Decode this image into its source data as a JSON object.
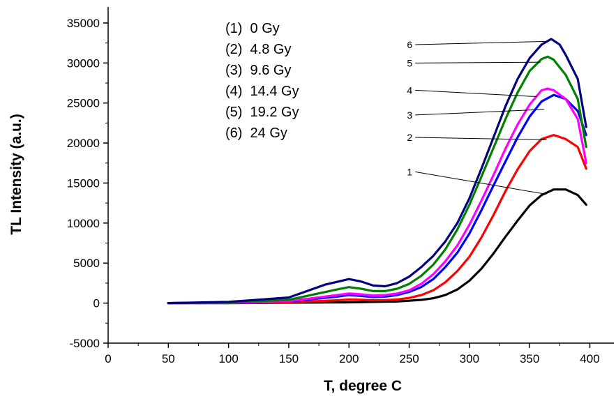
{
  "chart_data": {
    "type": "line",
    "xlabel": "T, degree C",
    "ylabel": "TL Intensity (a.u.)",
    "xlim": [
      0,
      420
    ],
    "ylim": [
      -5000,
      37000
    ],
    "xticks": [
      0,
      50,
      100,
      150,
      200,
      250,
      300,
      350,
      400
    ],
    "yticks": [
      -5000,
      0,
      5000,
      10000,
      15000,
      20000,
      25000,
      30000,
      35000
    ],
    "grid": false,
    "legend_position": "top-left",
    "legend": [
      "(1)  0 Gy",
      "(2)  4.8 Gy",
      "(3)  9.6 Gy",
      "(4)  14.4 Gy",
      "(5)  19.2 Gy",
      "(6)  24 Gy"
    ],
    "series": [
      {
        "name": "1",
        "color": "#000000",
        "x": [
          50,
          100,
          150,
          200,
          220,
          240,
          260,
          270,
          280,
          290,
          300,
          310,
          320,
          330,
          340,
          350,
          360,
          370,
          380,
          390,
          397
        ],
        "y": [
          0,
          0,
          50,
          100,
          150,
          200,
          400,
          600,
          1000,
          1700,
          2800,
          4300,
          6200,
          8300,
          10300,
          12200,
          13500,
          14200,
          14200,
          13500,
          12300
        ]
      },
      {
        "name": "2",
        "color": "#ff0000",
        "x": [
          50,
          100,
          150,
          190,
          200,
          210,
          220,
          230,
          240,
          250,
          260,
          270,
          280,
          290,
          300,
          310,
          320,
          330,
          340,
          350,
          360,
          370,
          380,
          390,
          397
        ],
        "y": [
          0,
          20,
          100,
          350,
          450,
          420,
          350,
          380,
          450,
          650,
          1000,
          1600,
          2600,
          4000,
          5800,
          8200,
          11000,
          14000,
          16700,
          19000,
          20500,
          21000,
          20500,
          19500,
          16800
        ]
      },
      {
        "name": "3",
        "color": "#0000ff",
        "x": [
          50,
          100,
          150,
          190,
          200,
          210,
          220,
          230,
          240,
          250,
          260,
          270,
          280,
          290,
          300,
          310,
          320,
          330,
          340,
          350,
          360,
          370,
          380,
          390,
          397
        ],
        "y": [
          0,
          50,
          200,
          800,
          1000,
          900,
          750,
          800,
          1000,
          1400,
          2000,
          3000,
          4500,
          6300,
          8700,
          11600,
          14700,
          17700,
          20700,
          23300,
          25200,
          26000,
          25500,
          24000,
          21000
        ]
      },
      {
        "name": "4",
        "color": "#ff00ff",
        "x": [
          50,
          100,
          150,
          190,
          200,
          210,
          220,
          230,
          240,
          250,
          260,
          270,
          280,
          290,
          300,
          310,
          320,
          330,
          340,
          350,
          360,
          365,
          370,
          380,
          390,
          397
        ],
        "y": [
          0,
          50,
          250,
          1000,
          1200,
          1100,
          950,
          1000,
          1200,
          1600,
          2400,
          3600,
          5200,
          7200,
          9800,
          12800,
          16000,
          19300,
          22300,
          24800,
          26600,
          26800,
          26600,
          25500,
          23000,
          17500
        ]
      },
      {
        "name": "5",
        "color": "#008000",
        "x": [
          50,
          100,
          150,
          190,
          200,
          210,
          220,
          230,
          240,
          250,
          260,
          270,
          280,
          290,
          300,
          310,
          320,
          330,
          340,
          350,
          360,
          365,
          370,
          380,
          390,
          397
        ],
        "y": [
          0,
          100,
          400,
          1700,
          2000,
          1800,
          1500,
          1500,
          1800,
          2400,
          3400,
          4800,
          6700,
          9200,
          12300,
          15800,
          19400,
          23000,
          26300,
          29000,
          30500,
          30800,
          30400,
          28500,
          25500,
          19500
        ]
      },
      {
        "name": "6",
        "color": "#000080",
        "x": [
          50,
          100,
          150,
          180,
          200,
          210,
          220,
          230,
          240,
          250,
          260,
          270,
          280,
          290,
          300,
          310,
          320,
          330,
          340,
          350,
          360,
          368,
          375,
          380,
          390,
          397
        ],
        "y": [
          0,
          150,
          700,
          2300,
          3000,
          2700,
          2200,
          2100,
          2500,
          3300,
          4500,
          5900,
          7700,
          10000,
          13100,
          16800,
          20700,
          24600,
          28000,
          30600,
          32300,
          33000,
          32300,
          31000,
          28000,
          22000
        ]
      }
    ],
    "curve_labels": [
      {
        "text": "6",
        "label_x": 255,
        "label_y": 32300,
        "x": 364,
        "y": 32700
      },
      {
        "text": "5",
        "label_x": 255,
        "label_y": 30000,
        "x": 359,
        "y": 30100
      },
      {
        "text": "4",
        "label_x": 255,
        "label_y": 26600,
        "x": 356,
        "y": 25800
      },
      {
        "text": "3",
        "label_x": 255,
        "label_y": 23500,
        "x": 362,
        "y": 24200
      },
      {
        "text": "2",
        "label_x": 255,
        "label_y": 20700,
        "x": 364,
        "y": 20400
      },
      {
        "text": "1",
        "label_x": 255,
        "label_y": 16400,
        "x": 364,
        "y": 13600
      }
    ]
  }
}
